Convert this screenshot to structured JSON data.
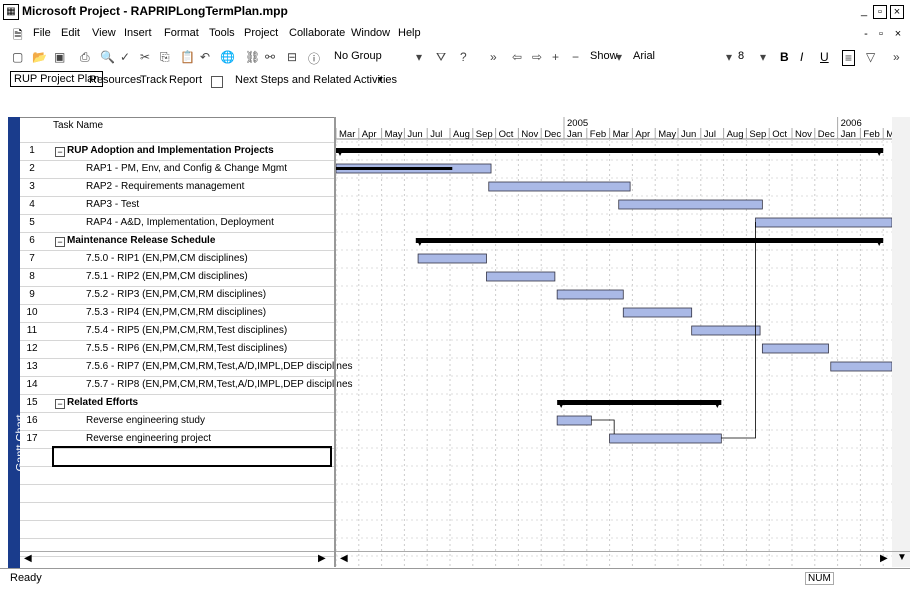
{
  "window": {
    "title": "Microsoft Project - RAPRIPLongTermPlan.mpp"
  },
  "menu": [
    "File",
    "Edit",
    "View",
    "Insert",
    "Format",
    "Tools",
    "Project",
    "Collaborate",
    "Window",
    "Help"
  ],
  "toolbar": {
    "group": "No Group",
    "show": "Show",
    "font": "Arial",
    "size": "8",
    "bold": "B",
    "italic": "I",
    "underline": "U"
  },
  "view_toolbar": {
    "rup_plan": "RUP Project Plan",
    "resources": "Resources",
    "track": "Track",
    "report": "Report",
    "next_steps": "Next Steps and Related Activities"
  },
  "side_label": "Gantt Chart",
  "grid": {
    "task_name_header": "Task Name",
    "rows": [
      {
        "id": "1",
        "name": "RUP Adoption and Implementation Projects",
        "summary": true
      },
      {
        "id": "2",
        "name": "RAP1 - PM, Env, and Config & Change Mgmt",
        "summary": false
      },
      {
        "id": "3",
        "name": "RAP2 - Requirements management",
        "summary": false
      },
      {
        "id": "4",
        "name": "RAP3 - Test",
        "summary": false
      },
      {
        "id": "5",
        "name": "RAP4 - A&D, Implementation, Deployment",
        "summary": false
      },
      {
        "id": "6",
        "name": "Maintenance Release Schedule",
        "summary": true
      },
      {
        "id": "7",
        "name": "7.5.0 - RIP1 (EN,PM,CM disciplines)",
        "summary": false
      },
      {
        "id": "8",
        "name": "7.5.1 - RIP2 (EN,PM,CM disciplines)",
        "summary": false
      },
      {
        "id": "9",
        "name": "7.5.2 - RIP3 (EN,PM,CM,RM disciplines)",
        "summary": false
      },
      {
        "id": "10",
        "name": "7.5.3 - RIP4 (EN,PM,CM,RM disciplines)",
        "summary": false
      },
      {
        "id": "11",
        "name": "7.5.4 - RIP5 (EN,PM,CM,RM,Test disciplines)",
        "summary": false
      },
      {
        "id": "12",
        "name": "7.5.5 - RIP6 (EN,PM,CM,RM,Test disciplines)",
        "summary": false
      },
      {
        "id": "13",
        "name": "7.5.6 - RIP7 (EN,PM,CM,RM,Test,A/D,IMPL,DEP disciplines",
        "summary": false
      },
      {
        "id": "14",
        "name": "7.5.7 - RIP8 (EN,PM,CM,RM,Test,A/D,IMPL,DEP disciplines",
        "summary": false
      },
      {
        "id": "15",
        "name": "Related Efforts",
        "summary": true
      },
      {
        "id": "16",
        "name": "Reverse engineering study",
        "summary": false
      },
      {
        "id": "17",
        "name": "Reverse engineering project",
        "summary": false
      }
    ]
  },
  "timescale": {
    "years": [
      {
        "label": "2005",
        "month_index": 10
      },
      {
        "label": "2006",
        "month_index": 22
      }
    ],
    "months": [
      "Mar",
      "Apr",
      "May",
      "Jun",
      "Jul",
      "Aug",
      "Sep",
      "Oct",
      "Nov",
      "Dec",
      "Jan",
      "Feb",
      "Mar",
      "Apr",
      "May",
      "Jun",
      "Jul",
      "Aug",
      "Sep",
      "Oct",
      "Nov",
      "Dec",
      "Jan",
      "Feb",
      "M"
    ]
  },
  "bars": [
    {
      "row": 1,
      "type": "summary",
      "start": 0,
      "end": 24
    },
    {
      "row": 2,
      "type": "task",
      "start": 0,
      "end": 6.8,
      "progress_end": 5.1
    },
    {
      "row": 3,
      "type": "task",
      "start": 6.7,
      "end": 12.9
    },
    {
      "row": 4,
      "type": "task",
      "start": 12.4,
      "end": 18.7
    },
    {
      "row": 5,
      "type": "task",
      "start": 18.4,
      "end": 24.5
    },
    {
      "row": 6,
      "type": "summary",
      "start": 3.5,
      "end": 24
    },
    {
      "row": 7,
      "type": "task",
      "start": 3.6,
      "end": 6.6
    },
    {
      "row": 8,
      "type": "task",
      "start": 6.6,
      "end": 9.6
    },
    {
      "row": 9,
      "type": "task",
      "start": 9.7,
      "end": 12.6
    },
    {
      "row": 10,
      "type": "task",
      "start": 12.6,
      "end": 15.6
    },
    {
      "row": 11,
      "type": "task",
      "start": 15.6,
      "end": 18.6
    },
    {
      "row": 12,
      "type": "task",
      "start": 18.7,
      "end": 21.6
    },
    {
      "row": 13,
      "type": "task",
      "start": 21.7,
      "end": 24.5
    },
    {
      "row": 15,
      "type": "summary",
      "start": 9.7,
      "end": 16.9
    },
    {
      "row": 16,
      "type": "task",
      "start": 9.7,
      "end": 11.2
    },
    {
      "row": 17,
      "type": "task",
      "start": 12.0,
      "end": 16.9
    }
  ],
  "status": {
    "ready": "Ready",
    "num": "NUM"
  }
}
